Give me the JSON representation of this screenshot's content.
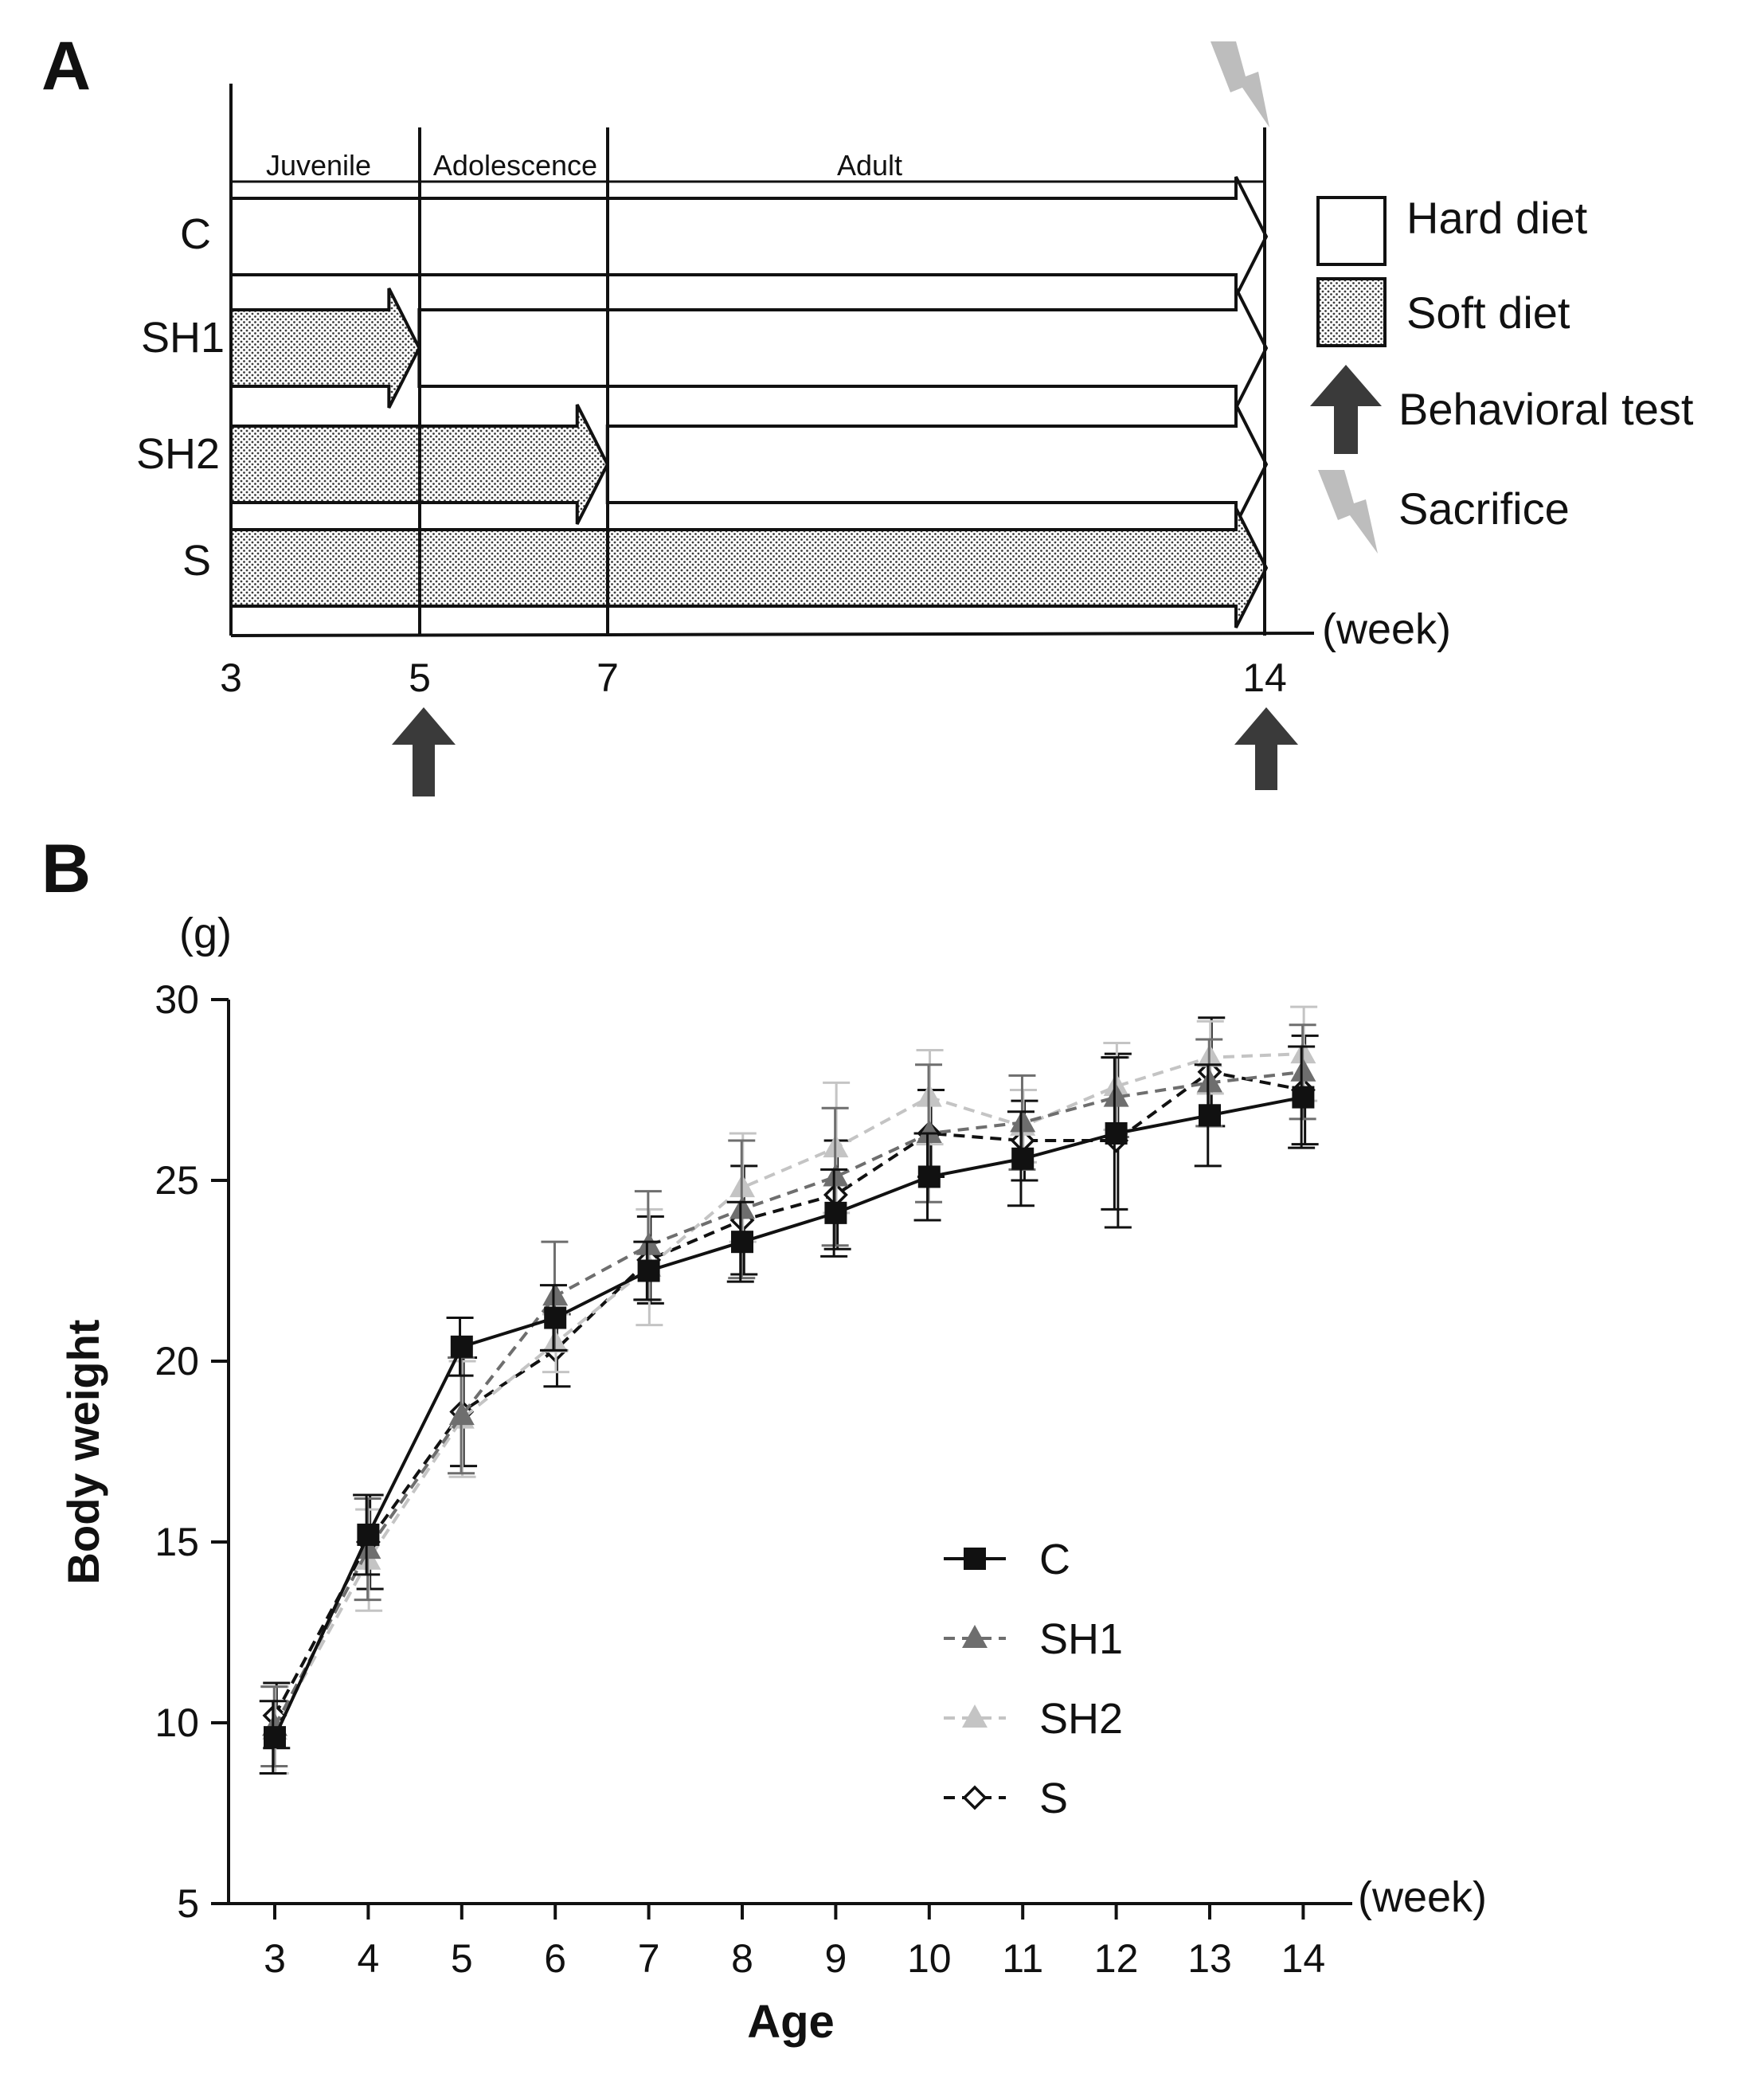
{
  "colors": {
    "black": "#111111",
    "dark_arrow": "#3a3a3a",
    "sacrifice": "#bdbdbd",
    "dot": "#444444"
  },
  "panel_a": {
    "label": "A",
    "period_labels": [
      "Juvenile",
      "Adolescence",
      "Adult"
    ],
    "groups": [
      {
        "name": "C",
        "soft_until_week": 3
      },
      {
        "name": "SH1",
        "soft_until_week": 5
      },
      {
        "name": "SH2",
        "soft_until_week": 7
      },
      {
        "name": "S",
        "soft_until_week": 14
      }
    ],
    "axis_ticks": [
      "3",
      "5",
      "7",
      "14"
    ],
    "tick_weeks": [
      3,
      5,
      7,
      14
    ],
    "axis_unit": "(week)",
    "behavioral_test_weeks": [
      5,
      14
    ],
    "sacrifice_week": 14,
    "legend": {
      "hard": "Hard diet",
      "soft": "Soft diet",
      "behavioral": "Behavioral test",
      "sacrifice": "Sacrifice"
    }
  },
  "panel_b": {
    "label": "B"
  },
  "chart_data": {
    "type": "line",
    "title": "",
    "ylabel": "Body weight",
    "yunit": "(g)",
    "xlabel": "Age",
    "xunit": "(week)",
    "x": [
      3,
      4,
      5,
      6,
      7,
      8,
      9,
      10,
      11,
      12,
      13,
      14
    ],
    "ylim": [
      5,
      30
    ],
    "yticks": [
      5,
      10,
      15,
      20,
      25,
      30
    ],
    "legend_position": "center-right",
    "series": [
      {
        "name": "C",
        "marker": "square",
        "line": "solid",
        "color": "#111111",
        "values": [
          9.6,
          15.2,
          20.4,
          21.2,
          22.5,
          23.3,
          24.1,
          25.1,
          25.6,
          26.3,
          26.8,
          27.3
        ],
        "errors": [
          1.0,
          1.1,
          0.8,
          0.9,
          0.8,
          1.1,
          1.2,
          1.2,
          1.3,
          2.1,
          1.4,
          1.4
        ]
      },
      {
        "name": "SH1",
        "marker": "triangle",
        "line": "dashed",
        "color": "#6e6e6e",
        "values": [
          9.9,
          14.8,
          18.5,
          21.8,
          23.2,
          24.2,
          25.1,
          26.3,
          26.6,
          27.3,
          27.7,
          28.0
        ],
        "errors": [
          1.1,
          1.4,
          1.6,
          1.5,
          1.5,
          1.9,
          1.9,
          1.9,
          1.3,
          1.1,
          1.2,
          1.3
        ]
      },
      {
        "name": "SH2",
        "marker": "triangle",
        "line": "dashed",
        "color": "#c4c4c4",
        "values": [
          9.8,
          14.5,
          18.4,
          20.5,
          22.6,
          24.8,
          25.9,
          27.3,
          26.5,
          27.6,
          28.4,
          28.5
        ],
        "errors": [
          1.2,
          1.4,
          1.6,
          0.8,
          1.6,
          1.5,
          1.8,
          1.3,
          1.0,
          1.2,
          1.0,
          1.3
        ]
      },
      {
        "name": "S",
        "marker": "diamond-open",
        "line": "dashed",
        "color": "#111111",
        "values": [
          10.2,
          15.0,
          18.6,
          20.3,
          22.8,
          23.9,
          24.6,
          26.3,
          26.1,
          26.1,
          28.0,
          27.5
        ],
        "errors": [
          0.9,
          1.3,
          1.5,
          1.0,
          1.2,
          1.5,
          1.5,
          1.2,
          1.1,
          2.4,
          1.5,
          1.5
        ]
      }
    ]
  }
}
